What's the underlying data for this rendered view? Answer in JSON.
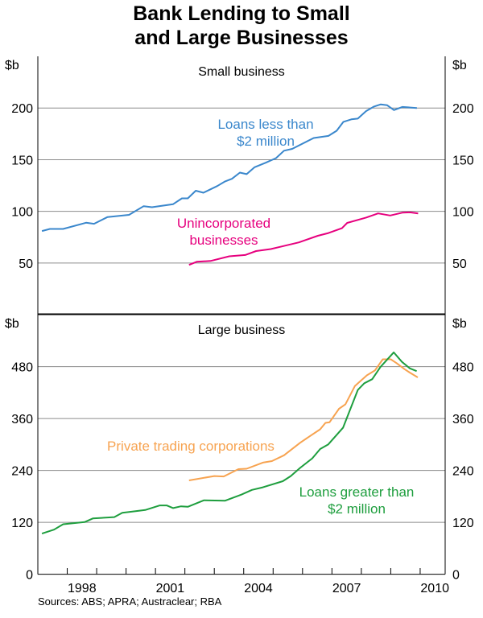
{
  "title_line1": "Bank Lending to Small",
  "title_line2": "and Large Businesses",
  "sources": "Sources: ABS; APRA; Austraclear; RBA",
  "chart_data": [
    {
      "type": "line",
      "panel_title": "Small business",
      "unit_left": "$b",
      "unit_right": "$b",
      "ylim": [
        0,
        250
      ],
      "yticks": [
        50,
        100,
        150,
        200
      ],
      "grid": true,
      "series": [
        {
          "name": "Loans less than $2 million",
          "label_lines": [
            "Loans less than",
            "$2 million"
          ],
          "color": "#3A87CC",
          "points": [
            [
              1997.14,
              81
            ],
            [
              1997.41,
              83
            ],
            [
              1997.86,
              83
            ],
            [
              1998.64,
              89
            ],
            [
              1998.91,
              88
            ],
            [
              1999.37,
              94.5
            ],
            [
              2000.1,
              96.6
            ],
            [
              2000.6,
              105
            ],
            [
              2000.88,
              104
            ],
            [
              2001.6,
              107
            ],
            [
              2001.9,
              112.6
            ],
            [
              2002.1,
              112.6
            ],
            [
              2002.37,
              120
            ],
            [
              2002.63,
              118
            ],
            [
              2003.1,
              124.5
            ],
            [
              2003.37,
              129
            ],
            [
              2003.6,
              131.5
            ],
            [
              2003.87,
              137.5
            ],
            [
              2004.1,
              136
            ],
            [
              2004.37,
              142.7
            ],
            [
              2004.74,
              147
            ],
            [
              2005.1,
              151.5
            ],
            [
              2005.37,
              158.7
            ],
            [
              2005.65,
              160.5
            ],
            [
              2006.38,
              171
            ],
            [
              2006.88,
              173
            ],
            [
              2007.16,
              178
            ],
            [
              2007.39,
              186.6
            ],
            [
              2007.66,
              189
            ],
            [
              2007.88,
              189.7
            ],
            [
              2008.16,
              197
            ],
            [
              2008.43,
              201.4
            ],
            [
              2008.66,
              203.5
            ],
            [
              2008.88,
              202.7
            ],
            [
              2009.11,
              198
            ],
            [
              2009.39,
              201
            ],
            [
              2009.89,
              200
            ]
          ]
        },
        {
          "name": "Unincorporated businesses",
          "label_lines": [
            "Unincorporated",
            "businesses"
          ],
          "color": "#E6007E",
          "points": [
            [
              2002.14,
              48.2
            ],
            [
              2002.41,
              51.3
            ],
            [
              2002.87,
              52
            ],
            [
              2003.51,
              56.5
            ],
            [
              2004.05,
              57.8
            ],
            [
              2004.42,
              61.6
            ],
            [
              2004.92,
              63.5
            ],
            [
              2005.29,
              66
            ],
            [
              2005.88,
              70
            ],
            [
              2006.52,
              76.4
            ],
            [
              2006.88,
              79
            ],
            [
              2007.34,
              83.7
            ],
            [
              2007.52,
              88.8
            ],
            [
              2008.16,
              94
            ],
            [
              2008.57,
              98
            ],
            [
              2008.98,
              96
            ],
            [
              2009.39,
              98.7
            ],
            [
              2009.66,
              99
            ],
            [
              2009.93,
              98
            ]
          ]
        }
      ]
    },
    {
      "type": "line",
      "panel_title": "Large business",
      "unit_left": "$b",
      "unit_right": "$b",
      "ylim": [
        0,
        600
      ],
      "yticks": [
        0,
        120,
        240,
        360,
        480
      ],
      "grid": true,
      "xlim": [
        1997.0,
        2010.85
      ],
      "xtick_labels": [
        "1998",
        "2001",
        "2004",
        "2007",
        "2010"
      ],
      "series": [
        {
          "name": "Private trading corporations",
          "label_lines": [
            "Private trading corporations"
          ],
          "color": "#F7A350",
          "points": [
            [
              2002.14,
              217
            ],
            [
              2003.0,
              227
            ],
            [
              2003.32,
              226
            ],
            [
              2003.82,
              243
            ],
            [
              2004.1,
              244
            ],
            [
              2004.65,
              258
            ],
            [
              2004.96,
              261.5
            ],
            [
              2005.37,
              275
            ],
            [
              2005.92,
              304
            ],
            [
              2006.28,
              320.5
            ],
            [
              2006.6,
              335
            ],
            [
              2006.78,
              350
            ],
            [
              2006.92,
              351.5
            ],
            [
              2007.24,
              382.6
            ],
            [
              2007.46,
              393
            ],
            [
              2007.78,
              435
            ],
            [
              2008.19,
              460
            ],
            [
              2008.46,
              471
            ],
            [
              2008.73,
              497
            ],
            [
              2009.0,
              497
            ],
            [
              2009.2,
              488
            ],
            [
              2009.47,
              474
            ],
            [
              2009.65,
              466
            ],
            [
              2009.92,
              455
            ]
          ]
        },
        {
          "name": "Loans greater than $2 million",
          "label_lines": [
            "Loans greater than",
            "$2 million"
          ],
          "color": "#1E9E3E",
          "points": [
            [
              1997.14,
              94
            ],
            [
              1997.55,
              103
            ],
            [
              1997.86,
              115.5
            ],
            [
              1998.59,
              120.5
            ],
            [
              1998.87,
              129
            ],
            [
              1999.6,
              132
            ],
            [
              1999.87,
              142
            ],
            [
              2000.65,
              148.5
            ],
            [
              2001.15,
              159
            ],
            [
              2001.38,
              159
            ],
            [
              2001.6,
              153
            ],
            [
              2001.87,
              157
            ],
            [
              2002.1,
              156
            ],
            [
              2002.65,
              171
            ],
            [
              2003.37,
              170
            ],
            [
              2003.92,
              184
            ],
            [
              2004.28,
              195
            ],
            [
              2004.65,
              201
            ],
            [
              2005.33,
              215
            ],
            [
              2005.6,
              227
            ],
            [
              2005.92,
              246
            ],
            [
              2006.33,
              268
            ],
            [
              2006.6,
              289.5
            ],
            [
              2006.87,
              300
            ],
            [
              2007.38,
              339
            ],
            [
              2007.88,
              426
            ],
            [
              2008.1,
              441.5
            ],
            [
              2008.37,
              451
            ],
            [
              2008.65,
              479
            ],
            [
              2009.1,
              513
            ],
            [
              2009.38,
              491
            ],
            [
              2009.65,
              476
            ],
            [
              2009.88,
              469.5
            ]
          ]
        }
      ]
    }
  ]
}
